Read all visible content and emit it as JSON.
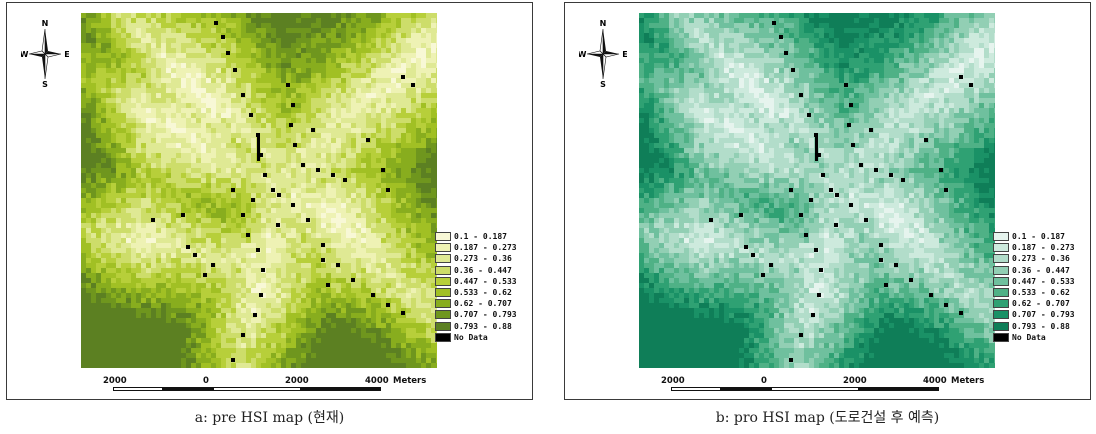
{
  "maps": [
    {
      "id": "a",
      "caption": "a: pre HSI map (현재)",
      "palette": [
        "#f8f8d6",
        "#eef2b4",
        "#dfe994",
        "#cddd6a",
        "#b7cf3a",
        "#a1c024",
        "#88ad1e",
        "#6f961e",
        "#5c8022"
      ],
      "nodata_color": "#000000"
    },
    {
      "id": "b",
      "caption": "b: pro HSI map (도로건설 후 예측)",
      "palette": [
        "#e6f4ee",
        "#cdeadd",
        "#b2ddca",
        "#92cfb4",
        "#6fc09e",
        "#4fb186",
        "#2fa173",
        "#1a9166",
        "#0f7e58"
      ],
      "nodata_color": "#000000"
    }
  ],
  "legend": {
    "classes": [
      "0.1 - 0.187",
      "0.187 - 0.273",
      "0.273 - 0.36",
      "0.36 - 0.447",
      "0.447 - 0.533",
      "0.533 - 0.62",
      "0.62 - 0.707",
      "0.707 - 0.793",
      "0.793 - 0.88"
    ],
    "nodata_label": "No Data"
  },
  "compass": {
    "n": "N",
    "s": "S",
    "e": "E",
    "w": "W"
  },
  "scalebar": {
    "labels": [
      "2000",
      "0",
      "2000",
      "4000"
    ],
    "unit": "Meters"
  }
}
